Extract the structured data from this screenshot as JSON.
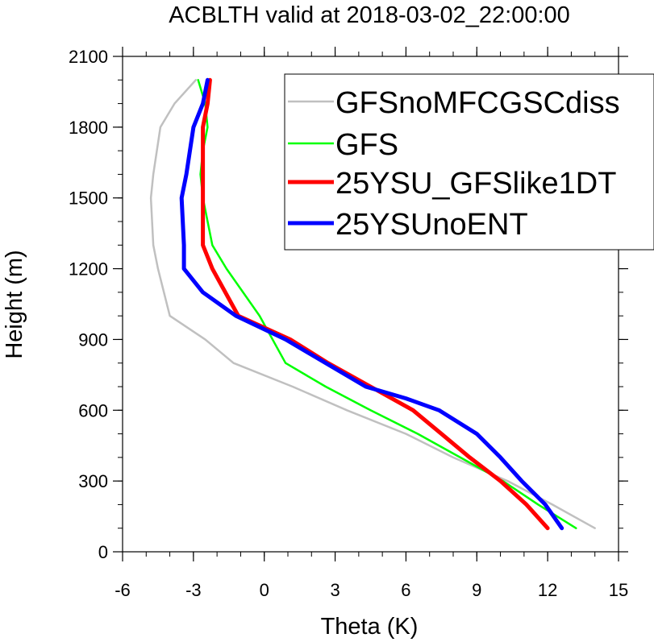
{
  "chart_data": {
    "type": "line",
    "title": "ACBLTH valid at 2018-03-02_22:00:00",
    "xlabel": "Theta (K)",
    "ylabel": "Height (m)",
    "xlim": [
      -6,
      15
    ],
    "ylim": [
      0,
      2100
    ],
    "xticks": [
      "-6",
      "-3",
      "0",
      "3",
      "6",
      "9",
      "12",
      "15"
    ],
    "yticks": [
      "0",
      "300",
      "600",
      "900",
      "1200",
      "1500",
      "1800",
      "2100"
    ],
    "legend_position": "top-right",
    "series": [
      {
        "name": "GFSnoMFCGSCdiss",
        "color": "#c0c0c0",
        "width": "thin",
        "x": [
          14.0,
          12.2,
          10.3,
          8.0,
          6.0,
          3.5,
          1.2,
          -1.3,
          -2.5,
          -4.0,
          -4.5,
          -4.7,
          -4.8,
          -4.7,
          -4.4,
          -3.8,
          -2.9
        ],
        "y": [
          100,
          200,
          300,
          400,
          500,
          600,
          700,
          800,
          900,
          1000,
          1200,
          1300,
          1500,
          1600,
          1800,
          1900,
          2000
        ]
      },
      {
        "name": "GFS",
        "color": "#00ff00",
        "width": "thin",
        "x": [
          13.2,
          11.6,
          10.1,
          8.3,
          6.5,
          4.5,
          2.6,
          0.9,
          -0.2,
          -1.6,
          -2.2,
          -2.6,
          -2.7,
          -2.6,
          -2.4,
          -2.5,
          -2.8
        ],
        "y": [
          100,
          200,
          300,
          400,
          500,
          600,
          700,
          800,
          1000,
          1200,
          1300,
          1500,
          1600,
          1700,
          1800,
          1900,
          2000
        ]
      },
      {
        "name": "25YSU_GFSlike1DT",
        "color": "#ff0000",
        "width": "thick",
        "x": [
          12.0,
          11.1,
          10.0,
          8.7,
          7.5,
          6.3,
          4.5,
          2.7,
          1.1,
          -1.1,
          -2.2,
          -2.6,
          -2.6,
          -2.6,
          -2.6,
          -2.6,
          -2.4,
          -2.3
        ],
        "y": [
          100,
          200,
          300,
          400,
          500,
          600,
          700,
          800,
          900,
          1000,
          1200,
          1300,
          1500,
          1600,
          1700,
          1800,
          1900,
          2000
        ]
      },
      {
        "name": "25YSUnoENT",
        "color": "#0000ff",
        "width": "thick",
        "x": [
          12.6,
          11.9,
          10.9,
          10.0,
          9.0,
          7.4,
          6.0,
          4.3,
          2.6,
          0.9,
          -1.2,
          -2.6,
          -3.4,
          -3.4,
          -3.5,
          -3.3,
          -3.0,
          -2.6,
          -2.4
        ],
        "y": [
          100,
          200,
          300,
          400,
          500,
          600,
          650,
          700,
          800,
          900,
          1000,
          1100,
          1200,
          1300,
          1500,
          1600,
          1800,
          1900,
          2000
        ]
      }
    ]
  }
}
